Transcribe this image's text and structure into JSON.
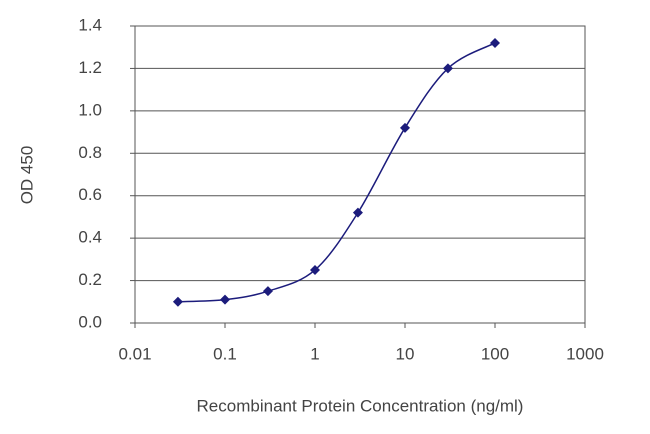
{
  "chart_data": {
    "type": "line",
    "x_label": "Recombinant Protein Concentration (ng/ml)",
    "y_label": "OD 450",
    "x": [
      0.03,
      0.1,
      0.3,
      1,
      3,
      10,
      30,
      100
    ],
    "values": [
      0.1,
      0.11,
      0.15,
      0.25,
      0.52,
      0.92,
      1.2,
      1.32
    ],
    "color": "#1c1c7c",
    "x_log": true,
    "xlim": [
      0.01,
      1000
    ],
    "xticks": [
      0.01,
      0.1,
      1,
      10,
      100,
      1000
    ],
    "ylim": [
      0,
      1.4
    ],
    "yticks": [
      {
        "value": 0,
        "label": "0.0"
      },
      0.2,
      0.4,
      0.6,
      0.8,
      {
        "value": 1,
        "label": "1.0"
      },
      1.2,
      1.4
    ],
    "grid": true
  }
}
